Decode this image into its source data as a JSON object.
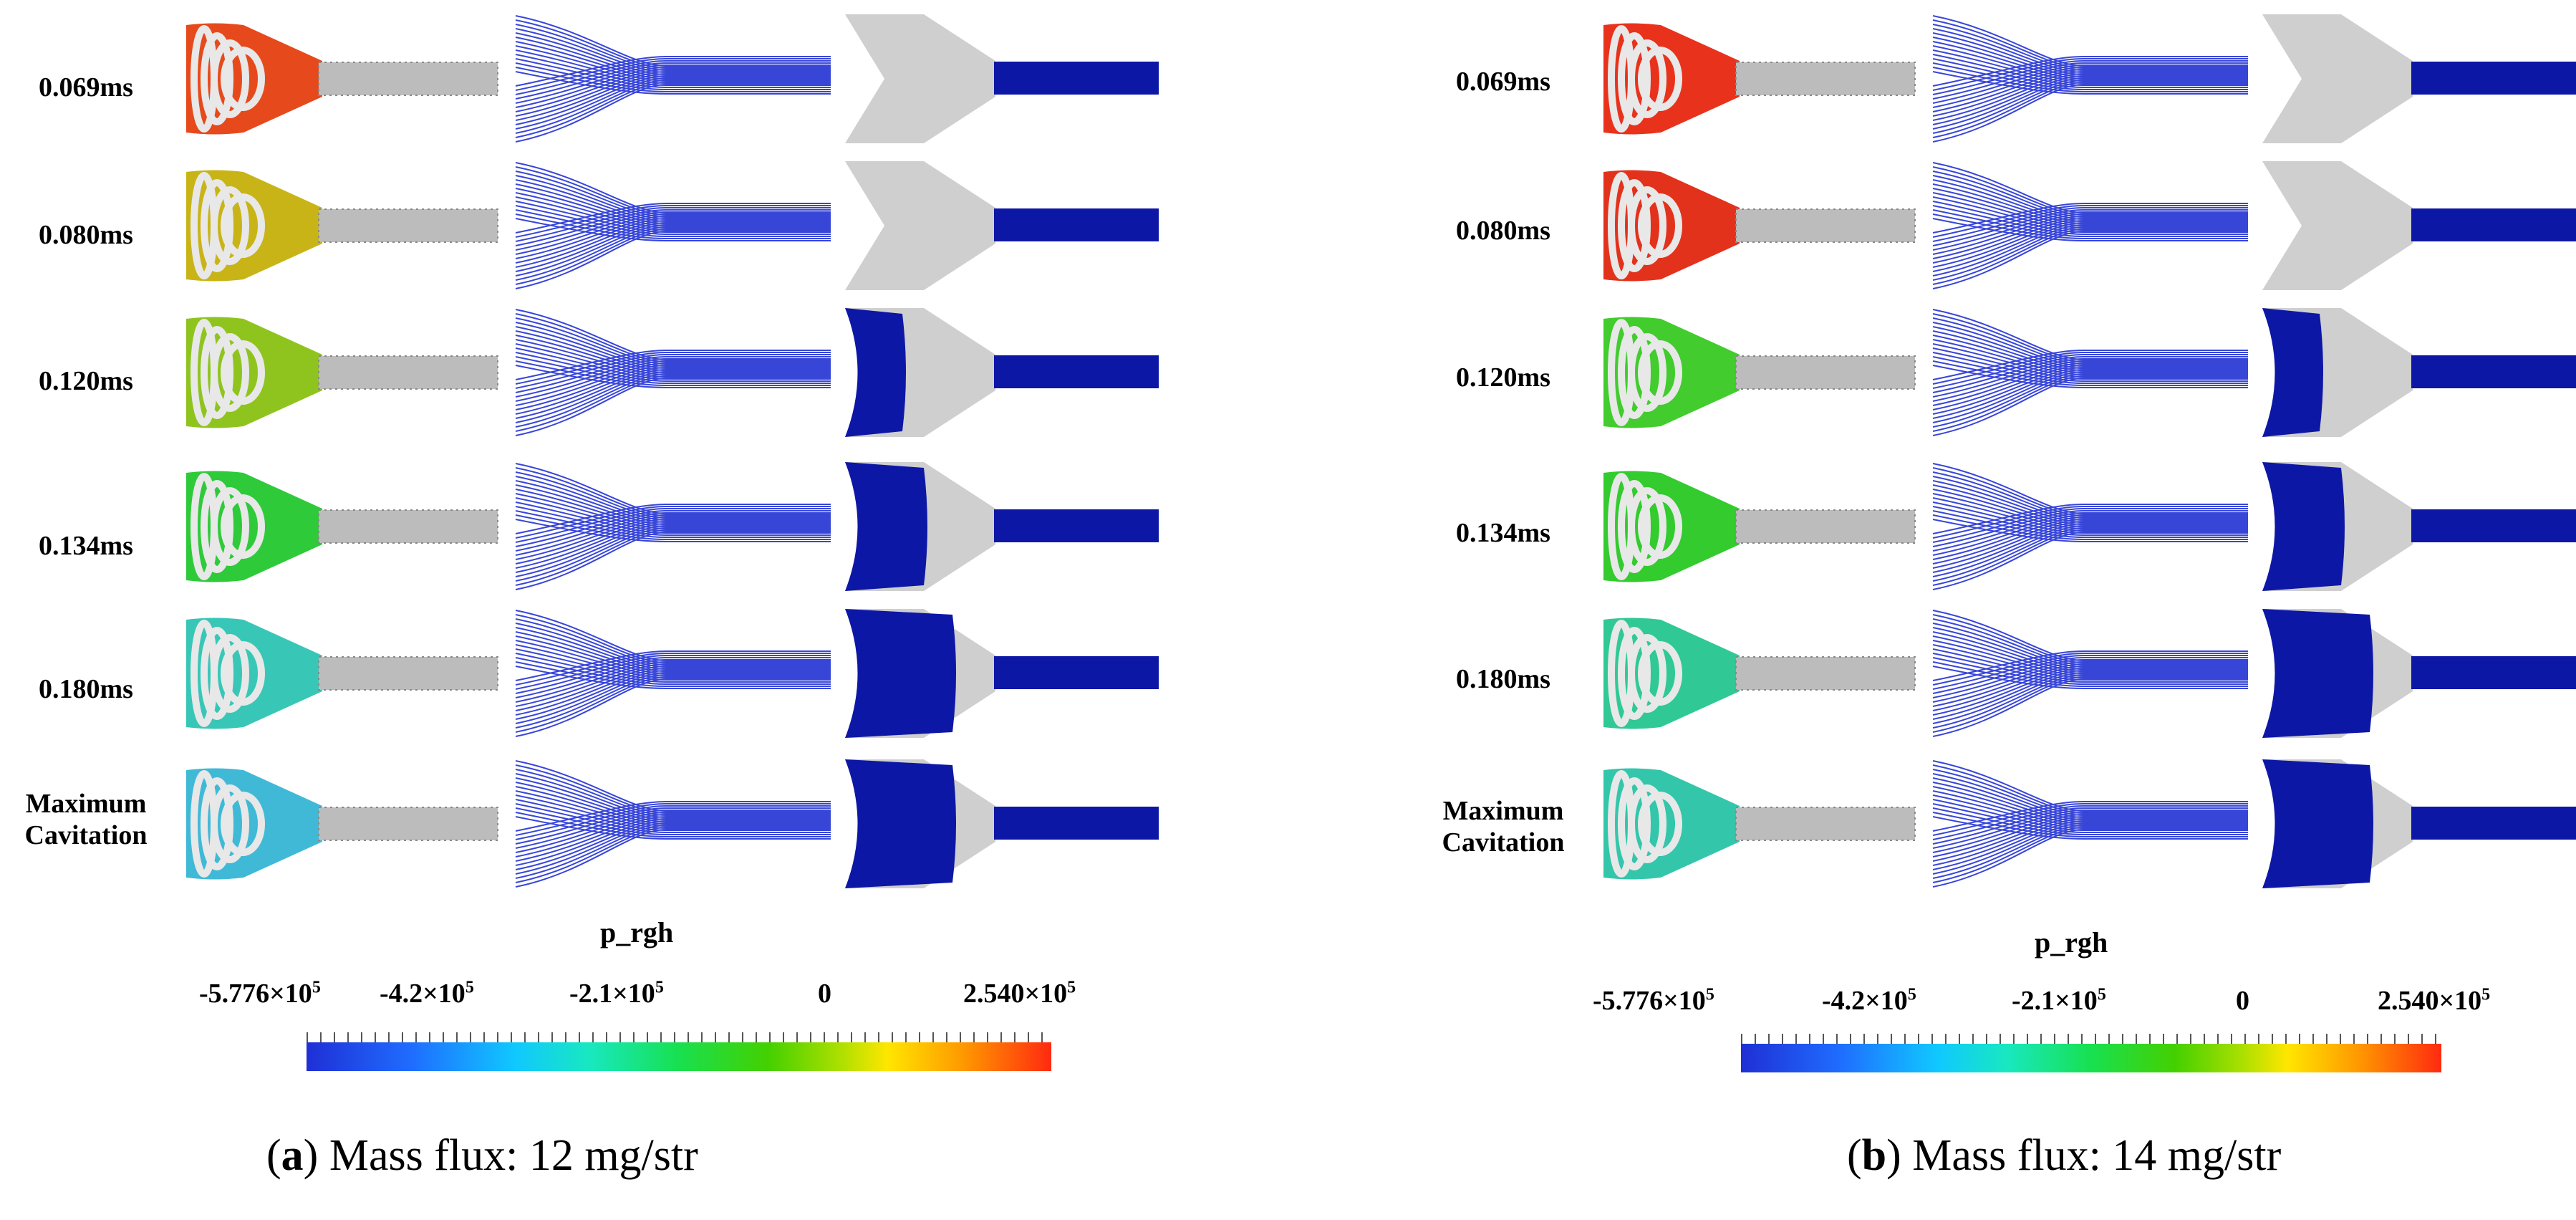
{
  "panels": [
    {
      "id": "a",
      "rows": [
        "0.069ms",
        "0.080ms",
        "0.120ms",
        "0.134ms",
        "0.180ms",
        "Maximum\nCavitation"
      ],
      "legend_title": "p_rgh",
      "ticks": [
        {
          "mant": "-5.776×10",
          "exp": "5"
        },
        {
          "mant": "-4.2×10",
          "exp": "5"
        },
        {
          "mant": "-2.1×10",
          "exp": "5"
        },
        {
          "mant": "0",
          "exp": ""
        },
        {
          "mant": "2.540×10",
          "exp": "5"
        }
      ],
      "caption_letter": "a",
      "caption_text": "Mass flux: 12 mg/str",
      "pressure_colors": [
        "#e64a1c",
        "#c9b418",
        "#8fc41f",
        "#2fca3a",
        "#38c7b7",
        "#40b9d7"
      ]
    },
    {
      "id": "b",
      "rows": [
        "0.069ms",
        "0.080ms",
        "0.120ms",
        "0.134ms",
        "0.180ms",
        "Maximum\nCavitation"
      ],
      "legend_title": "p_rgh",
      "ticks": [
        {
          "mant": "-5.776×10",
          "exp": "5"
        },
        {
          "mant": "-4.2×10",
          "exp": "5"
        },
        {
          "mant": "-2.1×10",
          "exp": "5"
        },
        {
          "mant": "0",
          "exp": ""
        },
        {
          "mant": "2.540×10",
          "exp": "5"
        }
      ],
      "caption_letter": "b",
      "caption_text": "Mass flux: 14 mg/str",
      "pressure_colors": [
        "#e9321c",
        "#e3321c",
        "#42cc2e",
        "#33cb2e",
        "#30c996",
        "#33c6ab"
      ]
    }
  ]
}
